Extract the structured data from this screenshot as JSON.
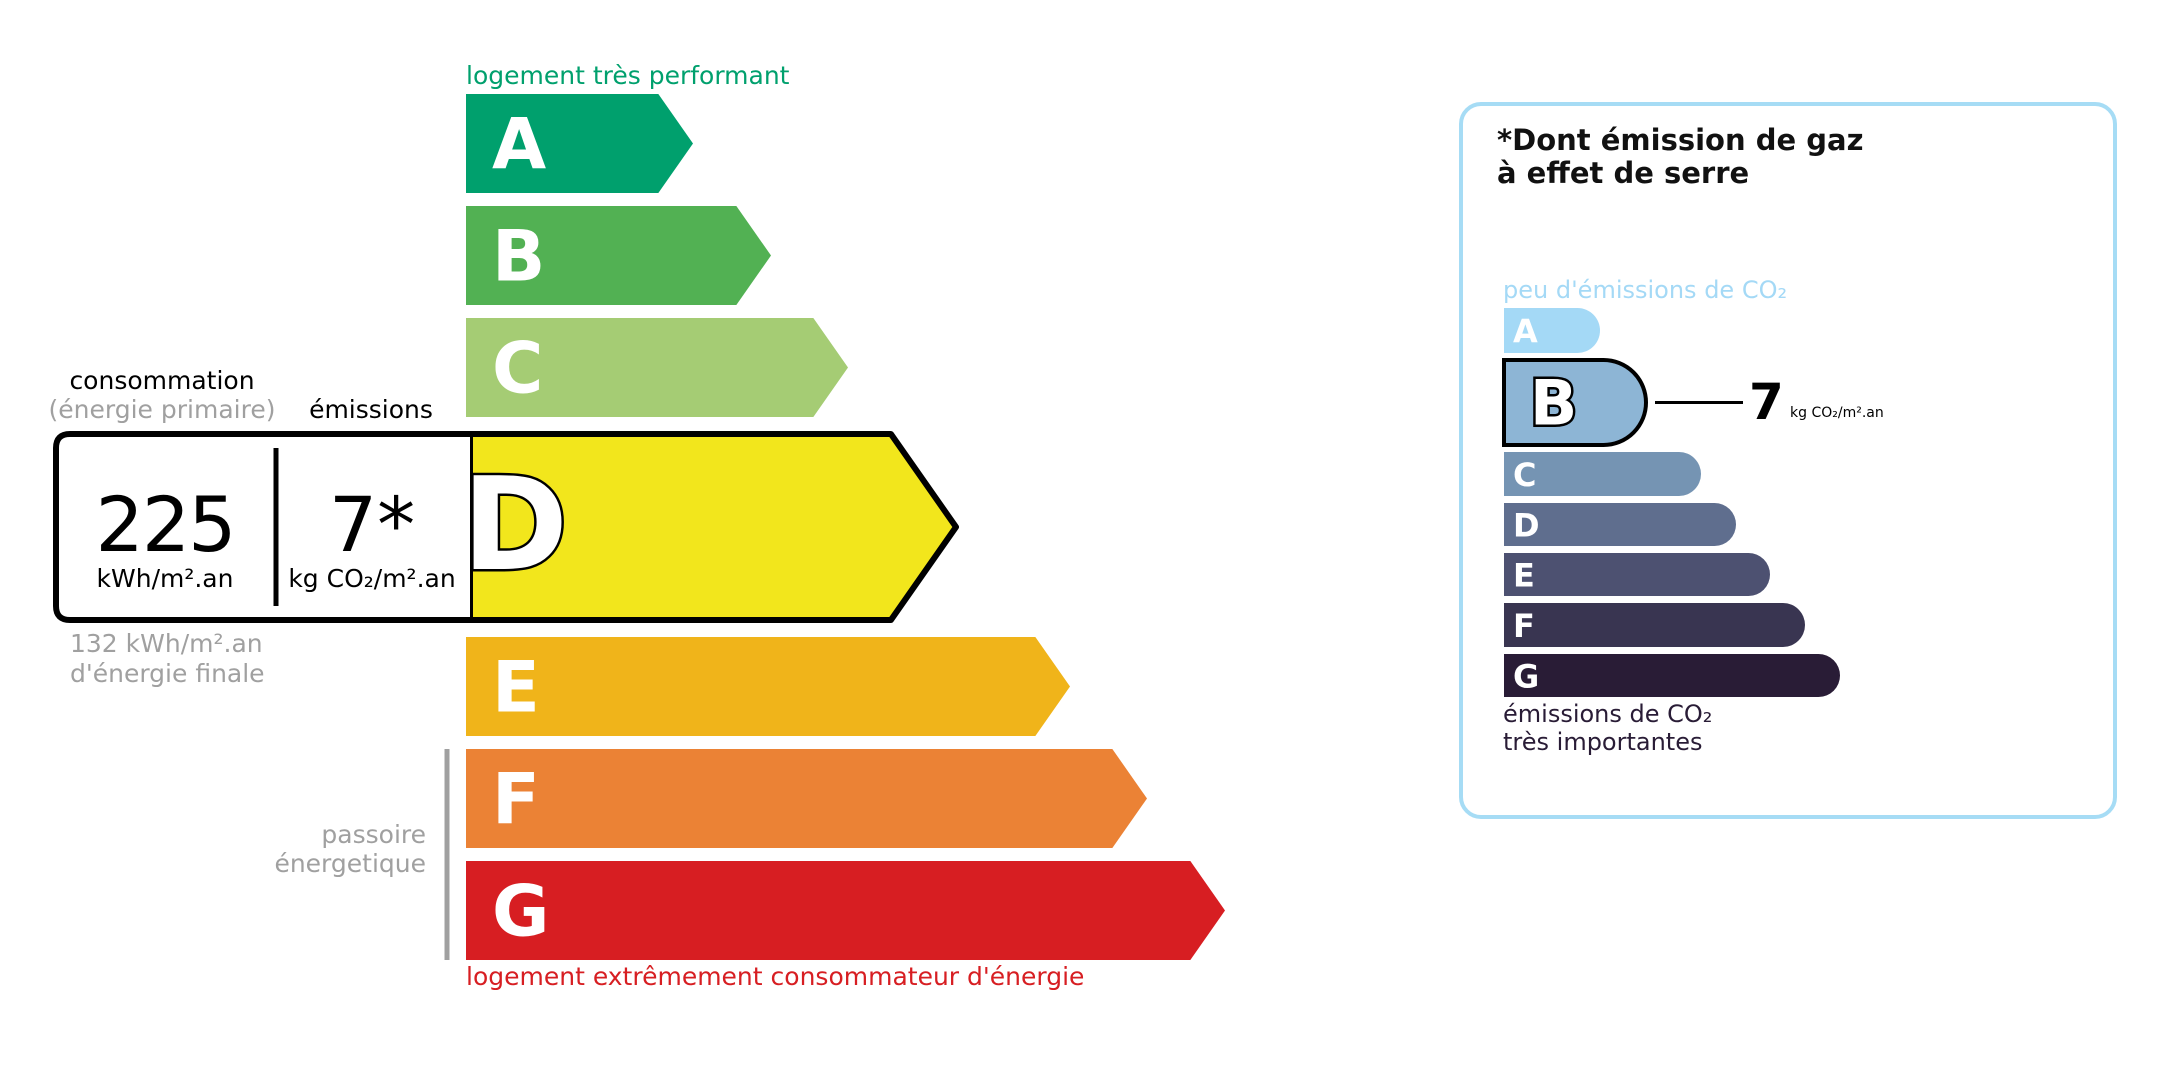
{
  "energy": {
    "top_label": "logement très performant",
    "bottom_label": "logement extrêmement consommateur d'énergie",
    "classes": [
      {
        "letter": "A",
        "color": "#00a06d"
      },
      {
        "letter": "B",
        "color": "#52b153"
      },
      {
        "letter": "C",
        "color": "#a5cc74"
      },
      {
        "letter": "D",
        "color": "#f2e61c"
      },
      {
        "letter": "E",
        "color": "#f0b41a"
      },
      {
        "letter": "F",
        "color": "#eb8235"
      },
      {
        "letter": "G",
        "color": "#d71e22"
      }
    ],
    "current_class": "D",
    "consumption_label": "consommation",
    "consumption_sub": "(énergie primaire)",
    "emissions_label": "émissions",
    "consumption_value": "225",
    "consumption_unit": "kWh/m².an",
    "emissions_value": "7*",
    "emissions_unit": "kg CO₂/m².an",
    "final_energy_value": "132 kWh/m².an",
    "final_energy_label": "d'énergie finale",
    "passoire_line1": "passoire",
    "passoire_line2": "énergetique"
  },
  "ghg": {
    "title_line1": "*Dont émission de gaz",
    "title_line2": "à effet de serre",
    "top_label": "peu d'émissions de CO₂",
    "bottom_line1": "émissions de CO₂",
    "bottom_line2": "très importantes",
    "classes": [
      {
        "letter": "A",
        "color": "#a4d9f6"
      },
      {
        "letter": "B",
        "color": "#8db5d5"
      },
      {
        "letter": "C",
        "color": "#7594b3"
      },
      {
        "letter": "D",
        "color": "#5f6e8e"
      },
      {
        "letter": "E",
        "color": "#4d5171"
      },
      {
        "letter": "F",
        "color": "#393551"
      },
      {
        "letter": "G",
        "color": "#291c36"
      }
    ],
    "current_class": "B",
    "value": "7",
    "unit": "kg CO₂/m².an",
    "border_color": "#a6dcf5"
  }
}
